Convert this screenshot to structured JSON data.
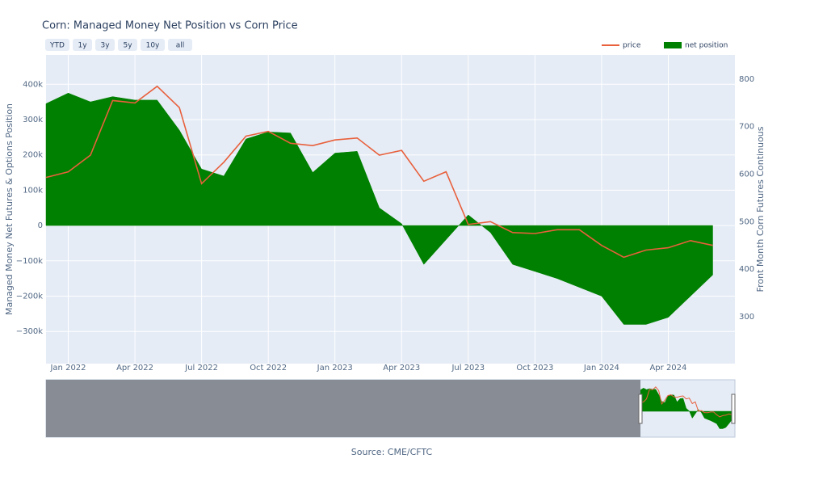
{
  "chart_data": {
    "type": "area-line",
    "title": "Corn: Managed Money Net Position vs Corn Price",
    "buttons": [
      "YTD",
      "1y",
      "3y",
      "5y",
      "10y",
      "all"
    ],
    "y_label": "Managed Money Net Futures & Options Position",
    "y2_label": "Front Month Corn Futures Continuous",
    "source": "Source: CME/CFTC",
    "legend": "top-right",
    "grid": true,
    "x": [
      "2021-12",
      "2022-01",
      "2022-02",
      "2022-03",
      "2022-04",
      "2022-05",
      "2022-06",
      "2022-07",
      "2022-08",
      "2022-09",
      "2022-10",
      "2022-11",
      "2022-12",
      "2023-01",
      "2023-02",
      "2023-03",
      "2023-04",
      "2023-05",
      "2023-06",
      "2023-07",
      "2023-08",
      "2023-09",
      "2023-10",
      "2023-11",
      "2023-12",
      "2024-01",
      "2024-02",
      "2024-03",
      "2024-04",
      "2024-05",
      "2024-06"
    ],
    "series": [
      {
        "name": "net position",
        "color": "#008000",
        "fill": true,
        "values": [
          345000,
          375000,
          350000,
          365000,
          355000,
          355000,
          270000,
          160000,
          140000,
          245000,
          265000,
          262000,
          150000,
          205000,
          210000,
          50000,
          5000,
          -110000,
          -40000,
          30000,
          -20000,
          -110000,
          -130000,
          -150000,
          -175000,
          -200000,
          -280000,
          -280000,
          -260000,
          -200000,
          -140000
        ]
      },
      {
        "name": "price",
        "color": "#e8603c",
        "axis": "y2",
        "values": [
          593,
          605,
          640,
          755,
          750,
          785,
          740,
          580,
          625,
          680,
          690,
          665,
          660,
          672,
          676,
          640,
          650,
          585,
          605,
          494,
          500,
          477,
          475,
          483,
          483,
          450,
          425,
          440,
          445,
          460,
          450
        ]
      }
    ],
    "xlim": [
      "2021-12",
      "2024-07"
    ],
    "xticks": [
      {
        "value": "2022-01",
        "label": "Jan 2022"
      },
      {
        "value": "2022-04",
        "label": "Apr 2022"
      },
      {
        "value": "2022-07",
        "label": "Jul 2022"
      },
      {
        "value": "2022-10",
        "label": "Oct 2022"
      },
      {
        "value": "2023-01",
        "label": "Jan 2023"
      },
      {
        "value": "2023-04",
        "label": "Apr 2023"
      },
      {
        "value": "2023-07",
        "label": "Jul 2023"
      },
      {
        "value": "2023-10",
        "label": "Oct 2023"
      },
      {
        "value": "2024-01",
        "label": "Jan 2024"
      },
      {
        "value": "2024-04",
        "label": "Apr 2024"
      }
    ],
    "ylim": [
      -391000,
      483000
    ],
    "yticks": [
      {
        "value": -300000,
        "label": "−300k"
      },
      {
        "value": -200000,
        "label": "−200k"
      },
      {
        "value": -100000,
        "label": "−100k"
      },
      0,
      {
        "value": 100000,
        "label": "100k"
      },
      {
        "value": 200000,
        "label": "200k"
      },
      {
        "value": 300000,
        "label": "300k"
      },
      {
        "value": 400000,
        "label": "400k"
      }
    ],
    "y2lim": [
      201,
      851
    ],
    "y2ticks": [
      300,
      400,
      500,
      600,
      700,
      800
    ]
  }
}
